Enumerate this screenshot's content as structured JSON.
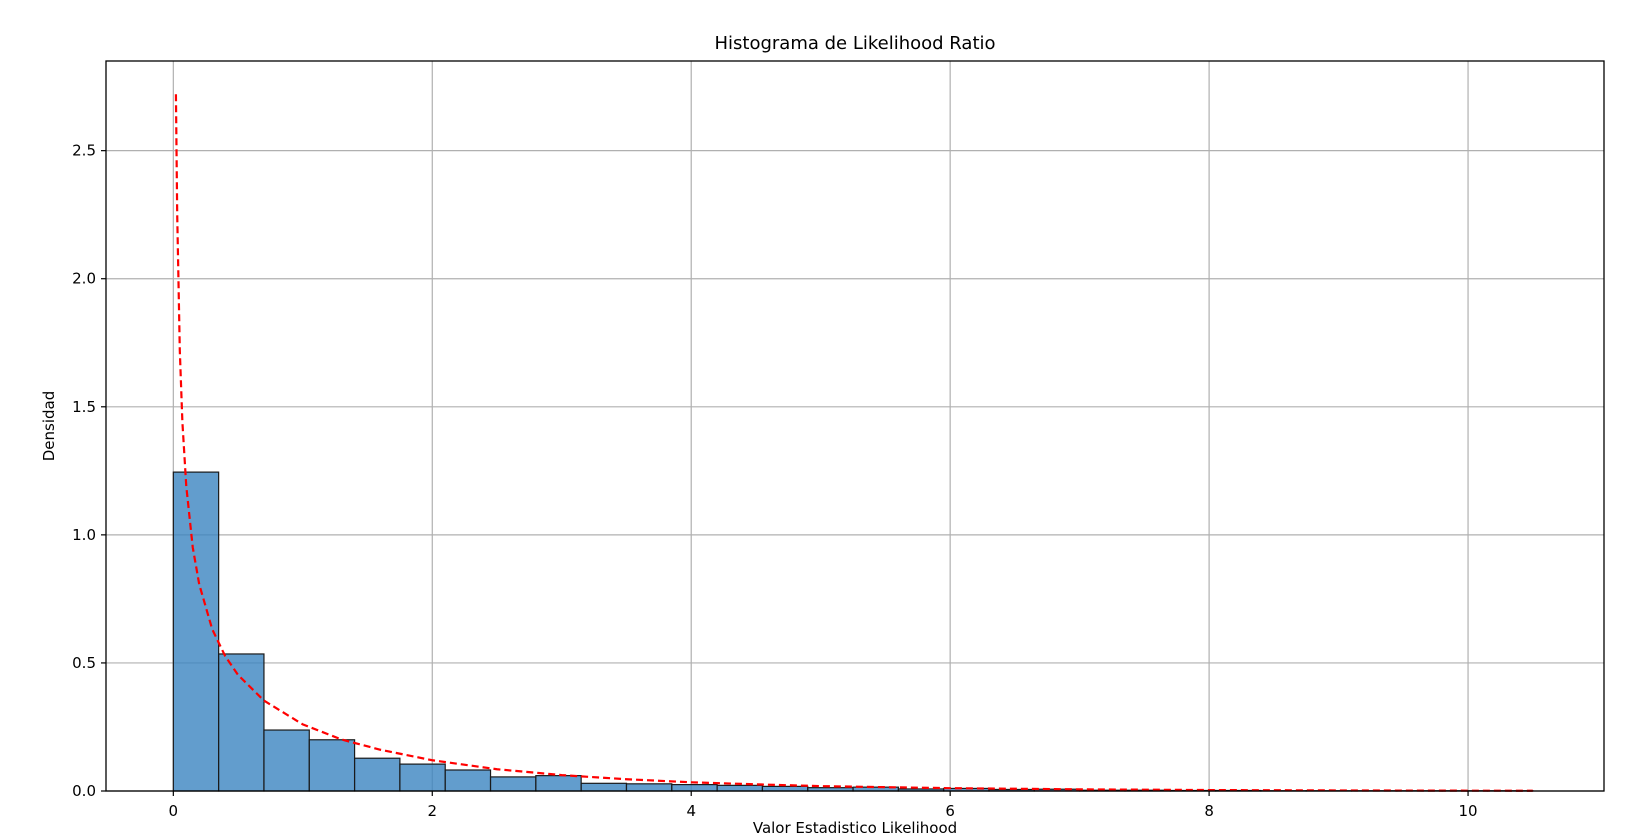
{
  "chart_data": {
    "type": "bar",
    "title": "Histograma de Likelihood Ratio",
    "xlabel": "Valor Estadistico Likelihood",
    "ylabel": "Densidad",
    "xlim": [
      -0.52,
      11.05
    ],
    "ylim": [
      0,
      2.85
    ],
    "xticks": [
      0,
      2,
      4,
      6,
      8,
      10
    ],
    "xtick_labels": [
      "0",
      "2",
      "4",
      "6",
      "8",
      "10"
    ],
    "yticks": [
      0.0,
      0.5,
      1.0,
      1.5,
      2.0,
      2.5
    ],
    "ytick_labels": [
      "0.0",
      "0.5",
      "1.0",
      "1.5",
      "2.0",
      "2.5"
    ],
    "grid": true,
    "histogram": {
      "bin_edges": [
        0.0,
        0.35,
        0.7,
        1.05,
        1.4,
        1.75,
        2.1,
        2.45,
        2.8,
        3.15,
        3.5,
        3.85,
        4.2,
        4.55,
        4.9,
        5.25,
        5.6,
        5.95,
        6.3,
        6.65,
        7.0,
        7.35,
        7.7,
        8.05,
        8.4,
        8.75,
        9.1,
        9.45,
        9.8,
        10.15,
        10.5
      ],
      "densities": [
        1.245,
        0.535,
        0.238,
        0.2,
        0.128,
        0.105,
        0.082,
        0.055,
        0.06,
        0.03,
        0.028,
        0.025,
        0.022,
        0.018,
        0.013,
        0.015,
        0.008,
        0.01,
        0.006,
        0.007,
        0.003,
        0.003,
        0.002,
        0.002,
        0.001,
        0.001,
        0.001,
        0.001,
        0.001,
        0.001
      ],
      "color": "#3b85c0",
      "edge_color": "#1a1a1a"
    },
    "curve": {
      "type": "line",
      "style": "dashed",
      "color": "#ff0000",
      "x": [
        0.02,
        0.03,
        0.05,
        0.07,
        0.1,
        0.15,
        0.2,
        0.3,
        0.4,
        0.5,
        0.7,
        1.0,
        1.3,
        1.6,
        2.0,
        2.5,
        3.0,
        3.5,
        4.0,
        4.5,
        5.0,
        5.5,
        6.0,
        7.0,
        8.0,
        9.0,
        10.0,
        10.5
      ],
      "y": [
        2.72,
        2.25,
        1.72,
        1.44,
        1.19,
        0.951,
        0.807,
        0.632,
        0.527,
        0.453,
        0.353,
        0.26,
        0.201,
        0.161,
        0.12,
        0.085,
        0.062,
        0.046,
        0.034,
        0.026,
        0.019,
        0.015,
        0.011,
        0.0065,
        0.0037,
        0.0022,
        0.0013,
        0.001
      ]
    }
  }
}
